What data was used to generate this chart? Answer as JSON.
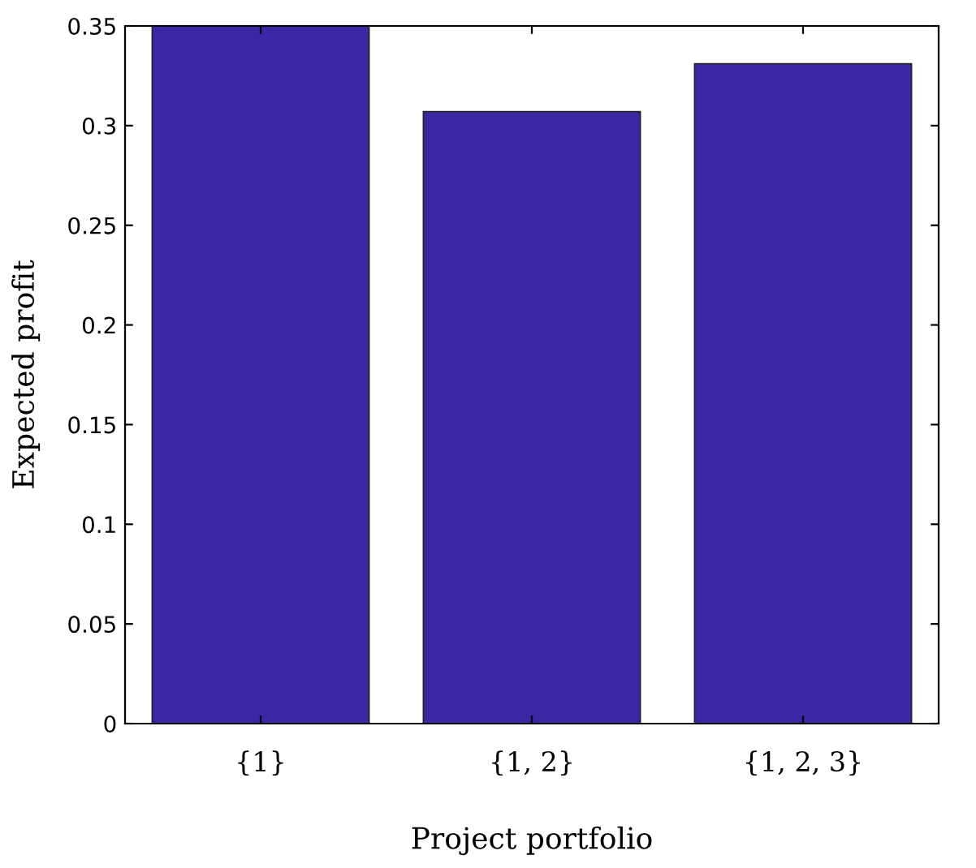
{
  "chart_data": {
    "type": "bar",
    "xlabel": "Project portfolio",
    "ylabel": "Expected profit",
    "categories": [
      "{1}",
      "{1, 2}",
      "{1, 2, 3}"
    ],
    "values": [
      0.35,
      0.307,
      0.331
    ],
    "color": "#3a27a3",
    "ylim": [
      0,
      0.35
    ],
    "yticks": [
      0,
      0.05,
      0.1,
      0.15,
      0.2,
      0.25,
      0.3,
      0.35
    ],
    "grid": false,
    "legend": false
  }
}
